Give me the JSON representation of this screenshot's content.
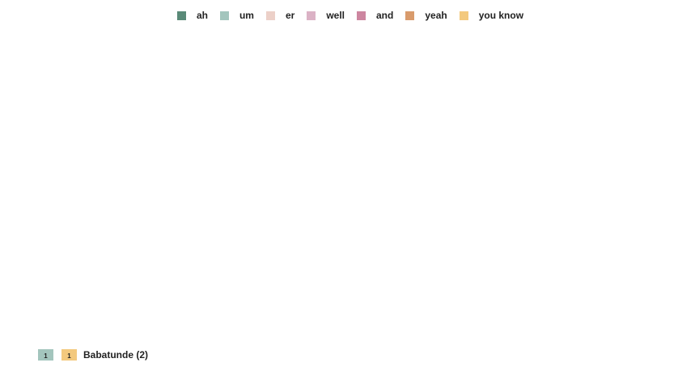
{
  "chart_data": {
    "type": "bar",
    "legend": {
      "placement": "top-center",
      "entries": [
        {
          "label": "ah",
          "color": "#5a8a78"
        },
        {
          "label": "um",
          "color": "#a3c5bd"
        },
        {
          "label": "er",
          "color": "#ecd0c8"
        },
        {
          "label": "well",
          "color": "#dbb2c5"
        },
        {
          "label": "and",
          "color": "#cd86a0"
        },
        {
          "label": "yeah",
          "color": "#d99b6c"
        },
        {
          "label": "you know",
          "color": "#f3c97e"
        }
      ]
    },
    "rows": [
      {
        "label": "Babatunde (2)",
        "segments": [
          {
            "category": "um",
            "value": 1,
            "label": "1",
            "color": "#a3c5bd"
          },
          {
            "category": "you know",
            "value": 1,
            "label": "1",
            "color": "#f3c97e"
          }
        ]
      }
    ]
  }
}
